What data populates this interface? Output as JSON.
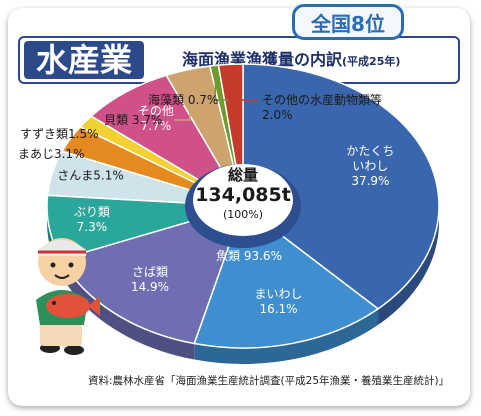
{
  "badge": "全国8位",
  "title": {
    "main": "水産業",
    "sub": "海面漁業漁獲量の内訳",
    "sub_paren": "(平成25年)"
  },
  "center": {
    "label": "総量",
    "total": "134,085t",
    "pct": "(100%)"
  },
  "fish_total_label": "魚類 93.6%",
  "source": "資料:農林水産省「海面漁業生産統計調査(平成25年漁業・養殖業生産統計)」",
  "colors": {
    "title_bg": "#2c4a8a",
    "badge_border": "#2a6db5"
  },
  "chart_data": {
    "type": "pie",
    "title": "海面漁業漁獲量の内訳",
    "total": "134,085t",
    "slices": [
      {
        "name": "かたくちいわし",
        "value": 37.9,
        "label": "かたくち\nいわし\n37.9%",
        "color": "#3a66ad"
      },
      {
        "name": "まいわし",
        "value": 16.1,
        "label": "まいわし\n16.1%",
        "color": "#3f8fd0"
      },
      {
        "name": "さば類",
        "value": 14.9,
        "label": "さば類\n14.9%",
        "color": "#6f6eb3"
      },
      {
        "name": "ぶり類",
        "value": 7.3,
        "label": "ぶり類\n7.3%",
        "color": "#2aa79a"
      },
      {
        "name": "さんま",
        "value": 5.1,
        "label": "さんま5.1%",
        "color": "#cfe3ea"
      },
      {
        "name": "まあじ",
        "value": 3.1,
        "label": "まあじ3.1%",
        "color": "#e58a1e"
      },
      {
        "name": "すずき類",
        "value": 1.5,
        "label": "すずき類1.5%",
        "color": "#f3d133"
      },
      {
        "name": "その他",
        "value": 7.7,
        "label": "その他\n7.7%",
        "color": "#d0508a"
      },
      {
        "name": "貝類",
        "value": 3.7,
        "label": "貝類 3.7%",
        "color": "#cda36e"
      },
      {
        "name": "海藻類",
        "value": 0.7,
        "label": "海藻類 0.7%",
        "color": "#6e9a2e"
      },
      {
        "name": "その他の水産動物類等",
        "value": 2.0,
        "label": "その他の水産動物類等\n2.0%",
        "color": "#c63a2c"
      }
    ]
  }
}
